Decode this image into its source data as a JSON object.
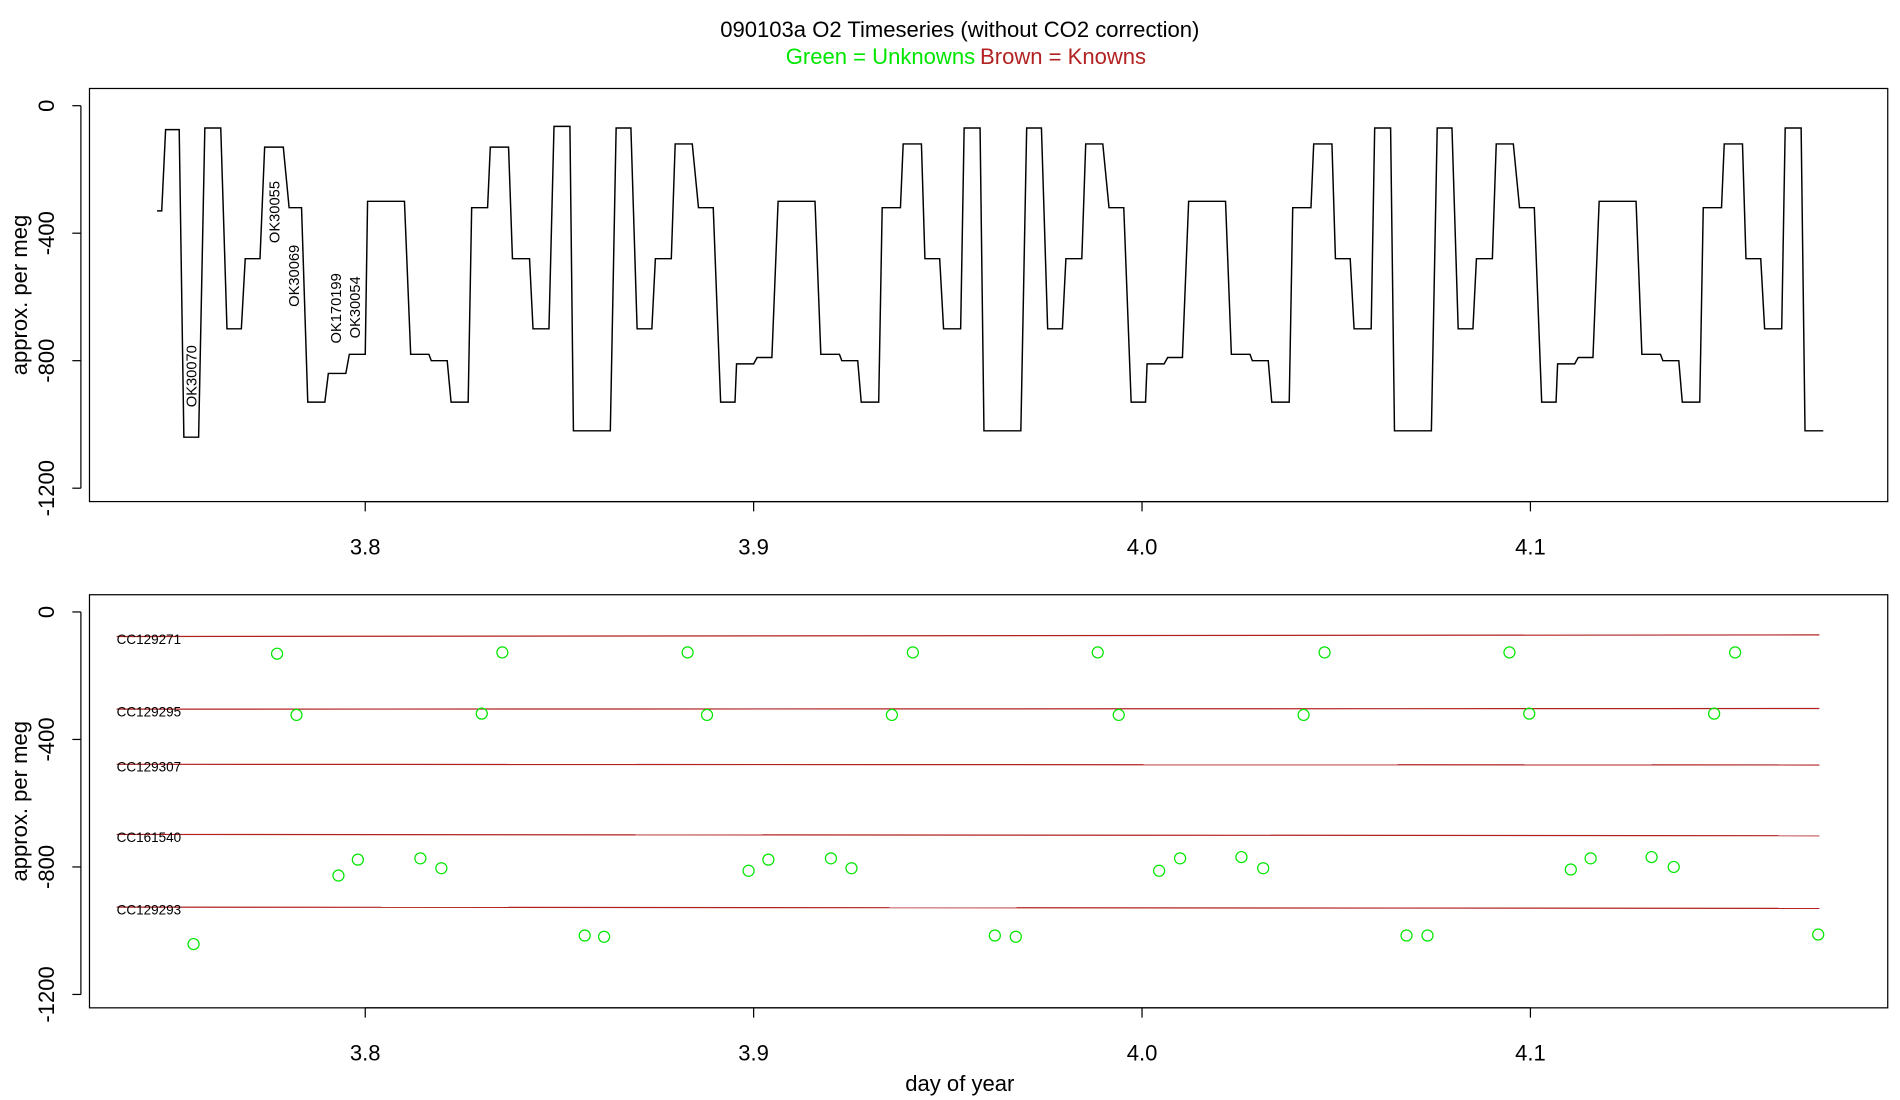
{
  "chart_data": [
    {
      "type": "line",
      "title": "090103a   O2 Timeseries (without CO2 correction)",
      "subtitle": [
        {
          "text": "Green = Unknowns",
          "color": "#00e600"
        },
        {
          "text": "Brown = Knowns",
          "color": "#b22222"
        }
      ],
      "y_label": "approx. per meg",
      "xlim": [
        3.729,
        4.192
      ],
      "ylim": [
        -1242,
        54
      ],
      "xticks": [
        3.8,
        3.9,
        {
          "value": 4,
          "label": "4.0"
        },
        4.1
      ],
      "yticks": [
        0,
        -400,
        -800,
        -1200
      ],
      "color": "#000000",
      "x": [
        3.7464,
        3.7476,
        3.7486,
        3.7521,
        3.7533,
        3.7571,
        3.7587,
        3.7628,
        3.7644,
        3.7681,
        3.7691,
        3.7729,
        3.7741,
        3.7789,
        3.7804,
        3.7836,
        3.7852,
        3.7896,
        3.7905,
        3.795,
        3.7959,
        3.8,
        3.8006,
        3.8101,
        3.8117,
        3.8164,
        3.817,
        3.8211,
        3.8221,
        3.8265,
        3.8274,
        3.8315,
        3.8322,
        3.8369,
        3.8379,
        3.8423,
        3.8432,
        3.8473,
        3.8486,
        3.8527,
        3.8536,
        3.8631,
        3.8646,
        3.8684,
        3.87,
        3.8738,
        3.8747,
        3.8788,
        3.8798,
        3.8842,
        3.8858,
        3.8896,
        3.8915,
        3.8952,
        3.8956,
        3.9,
        3.9009,
        3.9047,
        3.9063,
        3.9158,
        3.9173,
        3.9221,
        3.9227,
        3.9268,
        3.9277,
        3.9322,
        3.9331,
        3.9378,
        3.9385,
        3.9432,
        3.9441,
        3.9479,
        3.9489,
        3.9533,
        3.9542,
        3.9583,
        3.9593,
        3.9688,
        3.9703,
        3.9741,
        3.9757,
        3.9795,
        3.9804,
        3.9845,
        3.9855,
        3.9899,
        3.9915,
        3.9953,
        3.9972,
        4.0009,
        4.0013,
        4.0057,
        4.0066,
        4.0104,
        4.012,
        4.0215,
        4.023,
        4.0278,
        4.0284,
        4.0325,
        4.0334,
        4.0379,
        4.0388,
        4.0435,
        4.0442,
        4.0489,
        4.0498,
        4.0536,
        4.0546,
        4.059,
        4.0599,
        4.064,
        4.065,
        4.0745,
        4.076,
        4.0798,
        4.0814,
        4.0852,
        4.0861,
        4.0902,
        4.0912,
        4.0956,
        4.0972,
        4.101,
        4.1029,
        4.1066,
        4.107,
        4.1114,
        4.1123,
        4.1161,
        4.1177,
        4.1272,
        4.1287,
        4.1335,
        4.1341,
        4.1382,
        4.1391,
        4.1436,
        4.1445,
        4.1492,
        4.1499,
        4.1546,
        4.1555,
        4.1593,
        4.1603,
        4.1647,
        4.1656,
        4.1697,
        4.1707,
        4.1754
      ],
      "values": [
        -330,
        -330,
        -75,
        -75,
        -1040,
        -1040,
        -70,
        -70,
        -700,
        -700,
        -480,
        -480,
        -130,
        -130,
        -320,
        -320,
        -930,
        -930,
        -840,
        -840,
        -780,
        -780,
        -300,
        -300,
        -780,
        -780,
        -800,
        -800,
        -930,
        -930,
        -320,
        -320,
        -130,
        -130,
        -480,
        -480,
        -700,
        -700,
        -65,
        -65,
        -1020,
        -1020,
        -70,
        -70,
        -700,
        -700,
        -480,
        -480,
        -120,
        -120,
        -320,
        -320,
        -930,
        -930,
        -810,
        -810,
        -790,
        -790,
        -300,
        -300,
        -780,
        -780,
        -800,
        -800,
        -930,
        -930,
        -320,
        -320,
        -120,
        -120,
        -480,
        -480,
        -700,
        -700,
        -70,
        -70,
        -1020,
        -1020,
        -70,
        -70,
        -700,
        -700,
        -480,
        -480,
        -120,
        -120,
        -320,
        -320,
        -930,
        -930,
        -810,
        -810,
        -790,
        -790,
        -300,
        -300,
        -780,
        -780,
        -800,
        -800,
        -930,
        -930,
        -320,
        -320,
        -120,
        -120,
        -480,
        -480,
        -700,
        -700,
        -70,
        -70,
        -1020,
        -1020,
        -70,
        -70,
        -700,
        -700,
        -480,
        -480,
        -120,
        -120,
        -320,
        -320,
        -930,
        -930,
        -810,
        -810,
        -790,
        -790,
        -300,
        -300,
        -780,
        -780,
        -800,
        -800,
        -930,
        -930,
        -320,
        -320,
        -120,
        -120,
        -480,
        -480,
        -700,
        -700,
        -70,
        -70,
        -1020,
        -1020
      ],
      "annotations": [
        {
          "text": "OK30070",
          "x": 3.7565,
          "y": -946,
          "color": "#00e600"
        },
        {
          "text": "OK30055",
          "x": 3.7779,
          "y": -431,
          "color": "#00e600"
        },
        {
          "text": "OK30069",
          "x": 3.783,
          "y": -631,
          "color": "#00e600"
        },
        {
          "text": "OK170199",
          "x": 3.7937,
          "y": -746,
          "color": "#00e600"
        },
        {
          "text": "OK30054",
          "x": 3.7987,
          "y": -730,
          "color": "#00e600"
        }
      ]
    },
    {
      "type": "scatter",
      "x_label": "day of year",
      "y_label": "approx. per meg",
      "xlim": [
        3.729,
        4.192
      ],
      "ylim": [
        -1242,
        54
      ],
      "xticks": [
        3.8,
        3.9,
        {
          "value": 4,
          "label": "4.0"
        },
        4.1
      ],
      "yticks": [
        0,
        -400,
        -800,
        -1200
      ],
      "series": [
        {
          "name": "CC129271",
          "color": "#b22222",
          "mode": "line",
          "x": [
            3.736,
            4.1744
          ],
          "values": [
            -77,
            -72
          ]
        },
        {
          "name": "CC129295",
          "color": "#b22222",
          "mode": "line",
          "x": [
            3.736,
            4.1744
          ],
          "values": [
            -305,
            -303
          ]
        },
        {
          "name": "CC129307",
          "color": "#b22222",
          "mode": "line",
          "x": [
            3.736,
            4.1744
          ],
          "values": [
            -478,
            -480
          ]
        },
        {
          "name": "CC161540",
          "color": "#b22222",
          "mode": "line",
          "x": [
            3.736,
            4.1744
          ],
          "values": [
            -698,
            -702
          ]
        },
        {
          "name": "CC129293",
          "color": "#b22222",
          "mode": "line",
          "x": [
            3.736,
            4.1744
          ],
          "values": [
            -926,
            -930
          ]
        },
        {
          "color": "#00e600",
          "mode": "circle",
          "x": [
            3.7558,
            3.7773,
            3.7823,
            3.7931,
            3.7981,
            3.8142,
            3.8196,
            3.83,
            3.8353,
            3.8565,
            3.8615,
            3.883,
            3.888,
            3.8987,
            3.9038,
            3.9199,
            3.9252,
            3.9356,
            3.941,
            3.9621,
            3.9675,
            3.9886,
            3.994,
            4.0044,
            4.0098,
            4.0256,
            4.0312,
            4.0416,
            4.047,
            4.0681,
            4.0735,
            4.0946,
            4.0997,
            4.1104,
            4.1155,
            4.1312,
            4.1369,
            4.1473,
            4.1527,
            4.1741
          ],
          "values": [
            -1042,
            -131,
            -323,
            -827,
            -777,
            -773,
            -804,
            -319,
            -127,
            -1015,
            -1019,
            -127,
            -323,
            -812,
            -777,
            -773,
            -804,
            -323,
            -127,
            -1015,
            -1019,
            -127,
            -323,
            -812,
            -773,
            -769,
            -804,
            -323,
            -127,
            -1015,
            -1015,
            -127,
            -319,
            -808,
            -773,
            -769,
            -800,
            -319,
            -127,
            -1012
          ]
        }
      ]
    }
  ]
}
